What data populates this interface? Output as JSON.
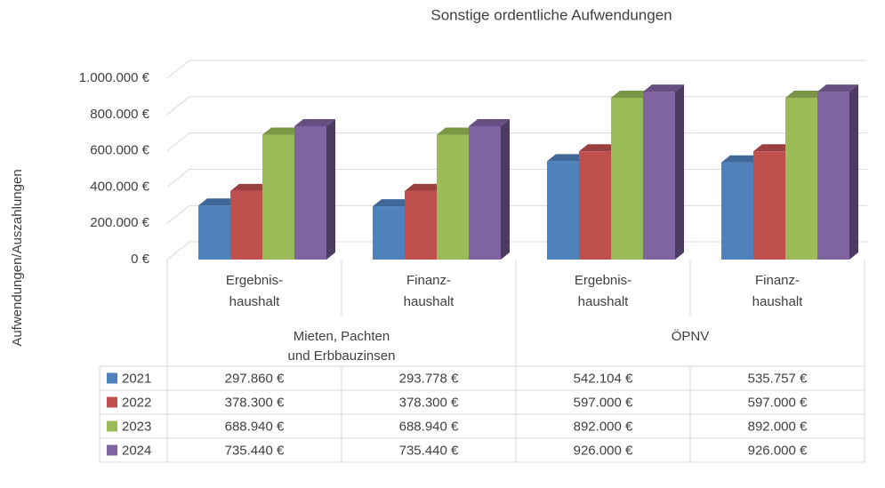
{
  "chart_data": {
    "type": "bar3d",
    "title": "Sonstige ordentliche Aufwendungen",
    "ylabel": "Aufwendungen/Auszahlungen",
    "groups": [
      {
        "name": [
          "Mieten, Pachten",
          "und Erbbauzinsen"
        ],
        "categories": [
          [
            "Ergebnis-",
            "haushalt"
          ],
          [
            "Finanz-",
            "haushalt"
          ]
        ]
      },
      {
        "name": [
          "ÖPNV"
        ],
        "categories": [
          [
            "Ergebnis-",
            "haushalt"
          ],
          [
            "Finanz-",
            "haushalt"
          ]
        ]
      }
    ],
    "series": [
      {
        "name": "2021",
        "color": "#4f81bd",
        "values": [
          297860,
          293778,
          542104,
          535757
        ],
        "value_labels": [
          "297.860 €",
          "293.778 €",
          "542.104 €",
          "535.757 €"
        ]
      },
      {
        "name": "2022",
        "color": "#c0504d",
        "values": [
          378300,
          378300,
          597000,
          597000
        ],
        "value_labels": [
          "378.300 €",
          "378.300 €",
          "597.000 €",
          "597.000 €"
        ]
      },
      {
        "name": "2023",
        "color": "#9bbb59",
        "values": [
          688940,
          688940,
          892000,
          892000
        ],
        "value_labels": [
          "688.940 €",
          "688.940 €",
          "892.000 €",
          "892.000 €"
        ]
      },
      {
        "name": "2024",
        "color": "#8064a2",
        "values": [
          735440,
          735440,
          926000,
          926000
        ],
        "value_labels": [
          "735.440 €",
          "735.440 €",
          "926.000 €",
          "926.000 €"
        ]
      }
    ],
    "ylim": [
      0,
      1000000
    ],
    "yticks": [
      {
        "value": 0,
        "label": "0 €"
      },
      {
        "value": 200000,
        "label": "200.000 €"
      },
      {
        "value": 400000,
        "label": "400.000 €"
      },
      {
        "value": 600000,
        "label": "600.000 €"
      },
      {
        "value": 800000,
        "label": "800.000 €"
      },
      {
        "value": 1000000,
        "label": "1.000.000 €"
      }
    ],
    "grid": true
  }
}
